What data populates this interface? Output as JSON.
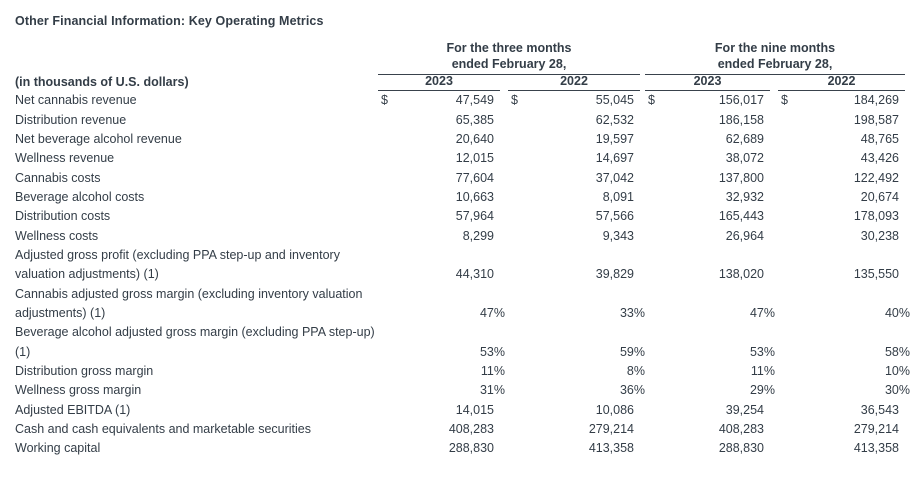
{
  "title": "Other Financial Information: Key Operating Metrics",
  "unit_note": "(in thousands of U.S. dollars)",
  "currency_symbol": "$",
  "colors": {
    "background": "#ffffff",
    "text": "#333d47",
    "rule": "#39424c"
  },
  "columns": {
    "groups": [
      {
        "line1": "For the three months",
        "line2": "ended February 28,",
        "years": [
          "2023",
          "2022"
        ]
      },
      {
        "line1": "For the nine months",
        "line2": "ended February 28,",
        "years": [
          "2023",
          "2022"
        ]
      }
    ]
  },
  "rows": [
    {
      "label": "Net cannabis revenue",
      "currency": true,
      "values": [
        "47,549",
        "55,045",
        "156,017",
        "184,269"
      ]
    },
    {
      "label": "Distribution revenue",
      "values": [
        "65,385",
        "62,532",
        "186,158",
        "198,587"
      ]
    },
    {
      "label": "Net beverage alcohol revenue",
      "values": [
        "20,640",
        "19,597",
        "62,689",
        "48,765"
      ]
    },
    {
      "label": "Wellness revenue",
      "values": [
        "12,015",
        "14,697",
        "38,072",
        "43,426"
      ]
    },
    {
      "label": "Cannabis costs",
      "values": [
        "77,604",
        "37,042",
        "137,800",
        "122,492"
      ]
    },
    {
      "label": "Beverage alcohol costs",
      "values": [
        "10,663",
        "8,091",
        "32,932",
        "20,674"
      ]
    },
    {
      "label": "Distribution costs",
      "values": [
        "57,964",
        "57,566",
        "165,443",
        "178,093"
      ]
    },
    {
      "label": "Wellness costs",
      "values": [
        "8,299",
        "9,343",
        "26,964",
        "30,238"
      ]
    },
    {
      "label": "Adjusted gross profit (excluding PPA step-up and inventory\nvaluation adjustments) (1)",
      "values": [
        "44,310",
        "39,829",
        "138,020",
        "135,550"
      ]
    },
    {
      "label": "Cannabis adjusted gross margin (excluding inventory valuation\nadjustments) (1)",
      "values": [
        "47%",
        "33%",
        "47%",
        "40%"
      ]
    },
    {
      "label": "Beverage alcohol adjusted gross margin (excluding PPA step-up)\n(1)",
      "values": [
        "53%",
        "59%",
        "53%",
        "58%"
      ]
    },
    {
      "label": "Distribution gross margin",
      "values": [
        "11%",
        "8%",
        "11%",
        "10%"
      ]
    },
    {
      "label": "Wellness gross margin",
      "values": [
        "31%",
        "36%",
        "29%",
        "30%"
      ]
    },
    {
      "label": "Adjusted EBITDA (1)",
      "values": [
        "14,015",
        "10,086",
        "39,254",
        "36,543"
      ]
    },
    {
      "label": "Cash and cash equivalents and marketable securities",
      "values": [
        "408,283",
        "279,214",
        "408,283",
        "279,214"
      ]
    },
    {
      "label": "Working capital",
      "values": [
        "288,830",
        "413,358",
        "288,830",
        "413,358"
      ]
    }
  ]
}
